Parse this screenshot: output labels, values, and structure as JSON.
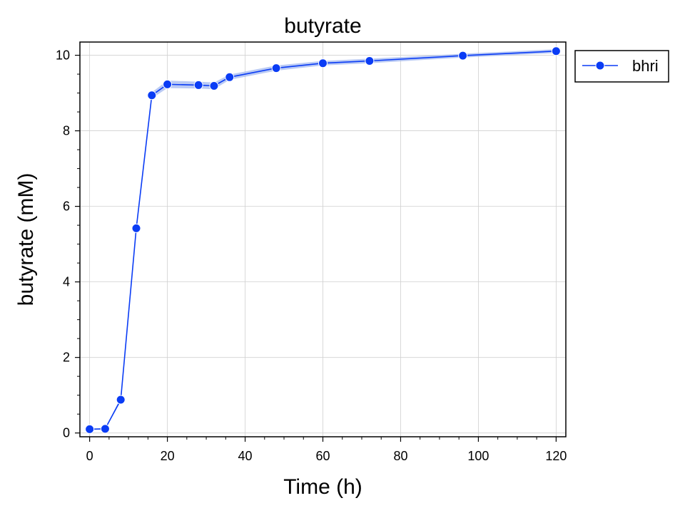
{
  "chart_data": {
    "type": "line",
    "title": "butyrate",
    "xlabel": "Time (h)",
    "ylabel": "butyrate (mM)",
    "xlim": [
      -2.5,
      122.5
    ],
    "ylim": [
      -0.1,
      10.35
    ],
    "xticks": [
      0,
      20,
      40,
      60,
      80,
      100,
      120
    ],
    "yticks": [
      0,
      2,
      4,
      6,
      8,
      10
    ],
    "x_minor_step": 5,
    "y_minor_step": 0.5,
    "grid": true,
    "legend_position": "outside-top-right",
    "series": [
      {
        "name": "bhri",
        "color": "#0a3cf5",
        "band_color": "#9db4f0",
        "x": [
          0,
          4,
          8,
          12,
          16,
          20,
          28,
          32,
          36,
          48,
          60,
          72,
          96,
          120
        ],
        "y": [
          0.1,
          0.11,
          0.88,
          5.42,
          8.94,
          9.23,
          9.21,
          9.19,
          9.42,
          9.66,
          9.79,
          9.85,
          9.99,
          10.11
        ],
        "band": [
          0.02,
          0.02,
          0.05,
          0.08,
          0.08,
          0.1,
          0.09,
          0.09,
          0.07,
          0.07,
          0.06,
          0.06,
          0.05,
          0.05
        ]
      }
    ]
  }
}
